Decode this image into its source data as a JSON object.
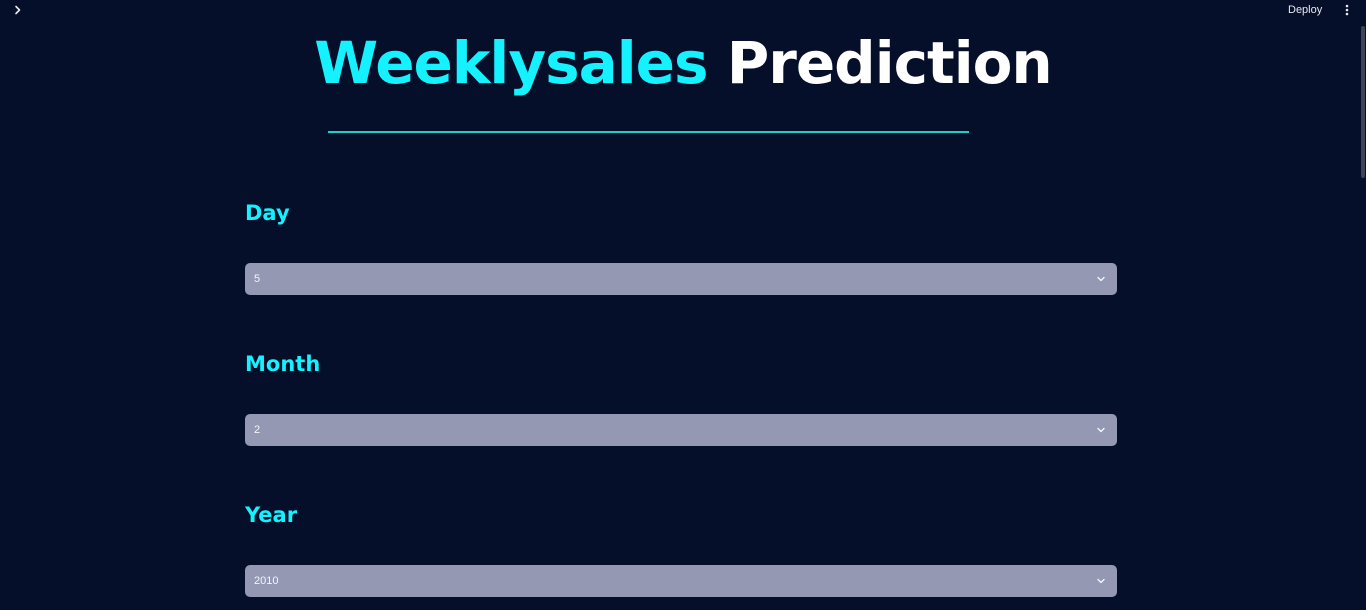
{
  "topbar": {
    "sidebar_toggle_icon": "chevron-right-icon",
    "deploy_label": "Deploy",
    "menu_icon": "more-vertical-icon"
  },
  "title": {
    "accent": "Weeklysales",
    "plain": "Prediction"
  },
  "fields": {
    "day": {
      "label": "Day",
      "value": "5"
    },
    "month": {
      "label": "Month",
      "value": "2"
    },
    "year": {
      "label": "Year",
      "value": "2010"
    }
  },
  "colors": {
    "background": "#050f2a",
    "accent": "#16f1ff",
    "divider": "#1ad1c9",
    "select_bg": "#9598b3"
  }
}
